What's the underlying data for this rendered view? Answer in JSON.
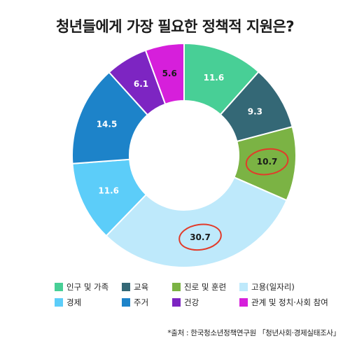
{
  "chart_data": {
    "type": "pie",
    "title": "청년들에게 가장 필요한 정책적 지원은?",
    "categories": [
      "인구 및 가족",
      "교육",
      "진로 및 훈련",
      "고용(일자리)",
      "경제",
      "주거",
      "건강",
      "관계 및 정치·사회 참여"
    ],
    "values": [
      11.6,
      9.3,
      10.7,
      30.7,
      11.6,
      14.5,
      6.1,
      5.6
    ],
    "value_labels": [
      "11.6",
      "9.3",
      "10.7",
      "30.7",
      "11.6",
      "14.5",
      "6.1",
      "5.6"
    ],
    "colors": [
      "#48cf96",
      "#346876",
      "#7bb344",
      "#bee9fb",
      "#5ccdf9",
      "#1d83c9",
      "#7d25c2",
      "#d61fdb"
    ],
    "label_colors": [
      "#ffffff",
      "#ffffff",
      "#1a1a1a",
      "#1a1a1a",
      "#ffffff",
      "#ffffff",
      "#ffffff",
      "#1a1a1a"
    ],
    "highlighted": [
      "진로 및 훈련",
      "고용(일자리)"
    ],
    "highlight_color": "#e23b2a",
    "legend_position": "bottom",
    "source": "*출처 : 한국청소년정책연구원 「청년사회·경제실태조사」"
  }
}
